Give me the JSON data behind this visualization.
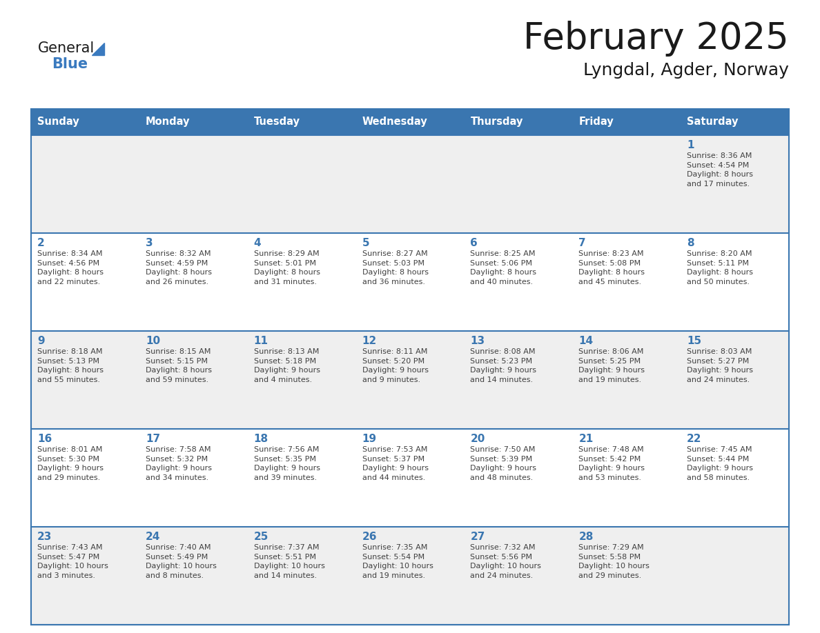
{
  "title": "February 2025",
  "subtitle": "Lyngdal, Agder, Norway",
  "days_of_week": [
    "Sunday",
    "Monday",
    "Tuesday",
    "Wednesday",
    "Thursday",
    "Friday",
    "Saturday"
  ],
  "header_bg_color": "#3a76b0",
  "header_text_color": "#FFFFFF",
  "row_odd_bg": "#efefef",
  "row_even_bg": "#ffffff",
  "cell_border_color": "#3a76b0",
  "day_number_color": "#3a76b0",
  "info_text_color": "#404040",
  "title_color": "#1a1a1a",
  "subtitle_color": "#1a1a1a",
  "logo_general_color": "#1a1a1a",
  "logo_blue_color": "#3a7abf",
  "calendar_data": [
    [
      {
        "day": null,
        "info": null
      },
      {
        "day": null,
        "info": null
      },
      {
        "day": null,
        "info": null
      },
      {
        "day": null,
        "info": null
      },
      {
        "day": null,
        "info": null
      },
      {
        "day": null,
        "info": null
      },
      {
        "day": "1",
        "info": "Sunrise: 8:36 AM\nSunset: 4:54 PM\nDaylight: 8 hours\nand 17 minutes."
      }
    ],
    [
      {
        "day": "2",
        "info": "Sunrise: 8:34 AM\nSunset: 4:56 PM\nDaylight: 8 hours\nand 22 minutes."
      },
      {
        "day": "3",
        "info": "Sunrise: 8:32 AM\nSunset: 4:59 PM\nDaylight: 8 hours\nand 26 minutes."
      },
      {
        "day": "4",
        "info": "Sunrise: 8:29 AM\nSunset: 5:01 PM\nDaylight: 8 hours\nand 31 minutes."
      },
      {
        "day": "5",
        "info": "Sunrise: 8:27 AM\nSunset: 5:03 PM\nDaylight: 8 hours\nand 36 minutes."
      },
      {
        "day": "6",
        "info": "Sunrise: 8:25 AM\nSunset: 5:06 PM\nDaylight: 8 hours\nand 40 minutes."
      },
      {
        "day": "7",
        "info": "Sunrise: 8:23 AM\nSunset: 5:08 PM\nDaylight: 8 hours\nand 45 minutes."
      },
      {
        "day": "8",
        "info": "Sunrise: 8:20 AM\nSunset: 5:11 PM\nDaylight: 8 hours\nand 50 minutes."
      }
    ],
    [
      {
        "day": "9",
        "info": "Sunrise: 8:18 AM\nSunset: 5:13 PM\nDaylight: 8 hours\nand 55 minutes."
      },
      {
        "day": "10",
        "info": "Sunrise: 8:15 AM\nSunset: 5:15 PM\nDaylight: 8 hours\nand 59 minutes."
      },
      {
        "day": "11",
        "info": "Sunrise: 8:13 AM\nSunset: 5:18 PM\nDaylight: 9 hours\nand 4 minutes."
      },
      {
        "day": "12",
        "info": "Sunrise: 8:11 AM\nSunset: 5:20 PM\nDaylight: 9 hours\nand 9 minutes."
      },
      {
        "day": "13",
        "info": "Sunrise: 8:08 AM\nSunset: 5:23 PM\nDaylight: 9 hours\nand 14 minutes."
      },
      {
        "day": "14",
        "info": "Sunrise: 8:06 AM\nSunset: 5:25 PM\nDaylight: 9 hours\nand 19 minutes."
      },
      {
        "day": "15",
        "info": "Sunrise: 8:03 AM\nSunset: 5:27 PM\nDaylight: 9 hours\nand 24 minutes."
      }
    ],
    [
      {
        "day": "16",
        "info": "Sunrise: 8:01 AM\nSunset: 5:30 PM\nDaylight: 9 hours\nand 29 minutes."
      },
      {
        "day": "17",
        "info": "Sunrise: 7:58 AM\nSunset: 5:32 PM\nDaylight: 9 hours\nand 34 minutes."
      },
      {
        "day": "18",
        "info": "Sunrise: 7:56 AM\nSunset: 5:35 PM\nDaylight: 9 hours\nand 39 minutes."
      },
      {
        "day": "19",
        "info": "Sunrise: 7:53 AM\nSunset: 5:37 PM\nDaylight: 9 hours\nand 44 minutes."
      },
      {
        "day": "20",
        "info": "Sunrise: 7:50 AM\nSunset: 5:39 PM\nDaylight: 9 hours\nand 48 minutes."
      },
      {
        "day": "21",
        "info": "Sunrise: 7:48 AM\nSunset: 5:42 PM\nDaylight: 9 hours\nand 53 minutes."
      },
      {
        "day": "22",
        "info": "Sunrise: 7:45 AM\nSunset: 5:44 PM\nDaylight: 9 hours\nand 58 minutes."
      }
    ],
    [
      {
        "day": "23",
        "info": "Sunrise: 7:43 AM\nSunset: 5:47 PM\nDaylight: 10 hours\nand 3 minutes."
      },
      {
        "day": "24",
        "info": "Sunrise: 7:40 AM\nSunset: 5:49 PM\nDaylight: 10 hours\nand 8 minutes."
      },
      {
        "day": "25",
        "info": "Sunrise: 7:37 AM\nSunset: 5:51 PM\nDaylight: 10 hours\nand 14 minutes."
      },
      {
        "day": "26",
        "info": "Sunrise: 7:35 AM\nSunset: 5:54 PM\nDaylight: 10 hours\nand 19 minutes."
      },
      {
        "day": "27",
        "info": "Sunrise: 7:32 AM\nSunset: 5:56 PM\nDaylight: 10 hours\nand 24 minutes."
      },
      {
        "day": "28",
        "info": "Sunrise: 7:29 AM\nSunset: 5:58 PM\nDaylight: 10 hours\nand 29 minutes."
      },
      {
        "day": null,
        "info": null
      }
    ]
  ]
}
